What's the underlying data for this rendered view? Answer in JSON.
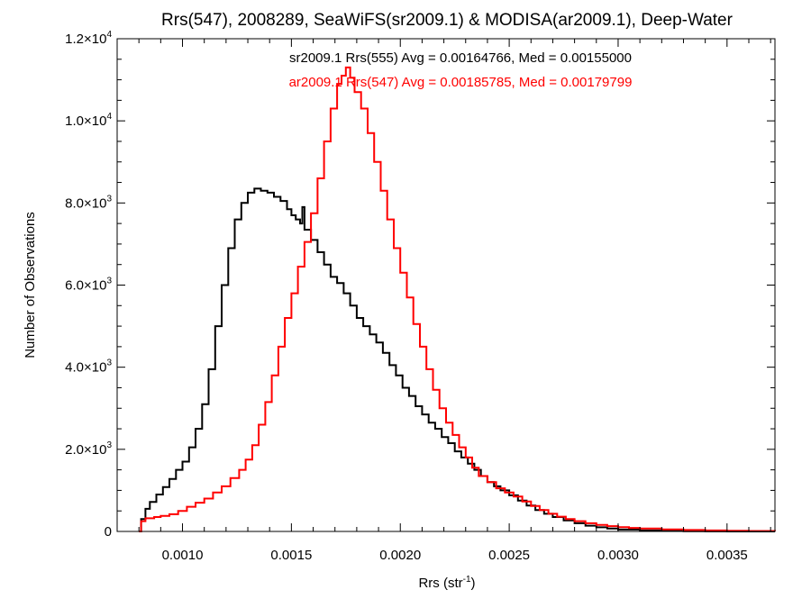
{
  "chart_data": {
    "type": "line",
    "style": "step histogram",
    "title": "Rrs(547), 2008289, SeaWiFS(sr2009.1) & MODISA(ar2009.1), Deep-Water",
    "xlabel": {
      "base": "Rrs (str",
      "sup": "-1",
      "tail": ")"
    },
    "ylabel": "Number of Observations",
    "xlim": [
      0.0007,
      0.00372
    ],
    "ylim": [
      0,
      12000
    ],
    "grid": false,
    "legend_position": "top-center",
    "x_ticks": [
      {
        "value": 0.001,
        "label": "0.0010"
      },
      {
        "value": 0.0015,
        "label": "0.0015"
      },
      {
        "value": 0.002,
        "label": "0.0020"
      },
      {
        "value": 0.0025,
        "label": "0.0025"
      },
      {
        "value": 0.003,
        "label": "0.0030"
      },
      {
        "value": 0.0035,
        "label": "0.0035"
      }
    ],
    "y_ticks": [
      {
        "value": 0,
        "mant": "0",
        "exp": ""
      },
      {
        "value": 2000,
        "mant": "2.0×10",
        "exp": "3"
      },
      {
        "value": 4000,
        "mant": "4.0×10",
        "exp": "3"
      },
      {
        "value": 6000,
        "mant": "6.0×10",
        "exp": "3"
      },
      {
        "value": 8000,
        "mant": "8.0×10",
        "exp": "3"
      },
      {
        "value": 10000,
        "mant": "1.0×10",
        "exp": "4"
      },
      {
        "value": 12000,
        "mant": "1.2×10",
        "exp": "4"
      }
    ],
    "series": [
      {
        "name": "sr2009.1 Rrs(555) Avg = 0.00164766, Med = 0.00155000",
        "color": "#000000",
        "points": [
          [
            0.0008,
            0
          ],
          [
            0.00081,
            300
          ],
          [
            0.00083,
            550
          ],
          [
            0.00085,
            720
          ],
          [
            0.00088,
            900
          ],
          [
            0.00091,
            1080
          ],
          [
            0.00094,
            1280
          ],
          [
            0.00097,
            1500
          ],
          [
            0.001,
            1700
          ],
          [
            0.00103,
            2050
          ],
          [
            0.00106,
            2500
          ],
          [
            0.00109,
            3100
          ],
          [
            0.00112,
            3950
          ],
          [
            0.00115,
            5000
          ],
          [
            0.00118,
            6000
          ],
          [
            0.00121,
            6900
          ],
          [
            0.00124,
            7600
          ],
          [
            0.00127,
            8000
          ],
          [
            0.0013,
            8250
          ],
          [
            0.00133,
            8350
          ],
          [
            0.00136,
            8300
          ],
          [
            0.00139,
            8250
          ],
          [
            0.00142,
            8150
          ],
          [
            0.00145,
            8050
          ],
          [
            0.00148,
            7850
          ],
          [
            0.0015,
            7700
          ],
          [
            0.00152,
            7600
          ],
          [
            0.00154,
            7500
          ],
          [
            0.00155,
            7900
          ],
          [
            0.00156,
            7350
          ],
          [
            0.00159,
            7100
          ],
          [
            0.00162,
            6800
          ],
          [
            0.00165,
            6500
          ],
          [
            0.00168,
            6200
          ],
          [
            0.00171,
            6050
          ],
          [
            0.00174,
            5800
          ],
          [
            0.00177,
            5500
          ],
          [
            0.0018,
            5200
          ],
          [
            0.00183,
            5000
          ],
          [
            0.00186,
            4800
          ],
          [
            0.00189,
            4600
          ],
          [
            0.00192,
            4350
          ],
          [
            0.00195,
            4050
          ],
          [
            0.00198,
            3800
          ],
          [
            0.00201,
            3500
          ],
          [
            0.00204,
            3300
          ],
          [
            0.00207,
            3050
          ],
          [
            0.0021,
            2850
          ],
          [
            0.00213,
            2650
          ],
          [
            0.00216,
            2500
          ],
          [
            0.00219,
            2300
          ],
          [
            0.00222,
            2150
          ],
          [
            0.00225,
            1950
          ],
          [
            0.00228,
            1800
          ],
          [
            0.00231,
            1650
          ],
          [
            0.00234,
            1500
          ],
          [
            0.00237,
            1350
          ],
          [
            0.0024,
            1200
          ],
          [
            0.00243,
            1100
          ],
          [
            0.00246,
            1000
          ],
          [
            0.0025,
            880
          ],
          [
            0.00254,
            750
          ],
          [
            0.00258,
            630
          ],
          [
            0.00262,
            520
          ],
          [
            0.00266,
            430
          ],
          [
            0.0027,
            350
          ],
          [
            0.00275,
            270
          ],
          [
            0.0028,
            200
          ],
          [
            0.00285,
            140
          ],
          [
            0.0029,
            100
          ],
          [
            0.00295,
            70
          ],
          [
            0.003,
            45
          ],
          [
            0.0031,
            25
          ],
          [
            0.0032,
            12
          ],
          [
            0.0033,
            6
          ],
          [
            0.0034,
            3
          ],
          [
            0.0035,
            1
          ],
          [
            0.0036,
            0
          ],
          [
            0.00372,
            0
          ]
        ]
      },
      {
        "name": "ar2009.1 Rrs(547) Avg = 0.00185785, Med = 0.00179799",
        "color": "#ff0000",
        "points": [
          [
            0.0008,
            0
          ],
          [
            0.00081,
            250
          ],
          [
            0.00083,
            320
          ],
          [
            0.00087,
            350
          ],
          [
            0.0009,
            380
          ],
          [
            0.00094,
            420
          ],
          [
            0.00098,
            500
          ],
          [
            0.00102,
            600
          ],
          [
            0.00106,
            700
          ],
          [
            0.0011,
            800
          ],
          [
            0.00114,
            950
          ],
          [
            0.00118,
            1100
          ],
          [
            0.00122,
            1300
          ],
          [
            0.00126,
            1500
          ],
          [
            0.00129,
            1750
          ],
          [
            0.00132,
            2100
          ],
          [
            0.00135,
            2600
          ],
          [
            0.00138,
            3150
          ],
          [
            0.00141,
            3800
          ],
          [
            0.00144,
            4500
          ],
          [
            0.00147,
            5200
          ],
          [
            0.0015,
            5800
          ],
          [
            0.00153,
            6450
          ],
          [
            0.00156,
            7050
          ],
          [
            0.00159,
            7750
          ],
          [
            0.00162,
            8600
          ],
          [
            0.00165,
            9500
          ],
          [
            0.00168,
            10300
          ],
          [
            0.00171,
            10900
          ],
          [
            0.00173,
            11100
          ],
          [
            0.00175,
            11300
          ],
          [
            0.00177,
            11050
          ],
          [
            0.00179,
            10700
          ],
          [
            0.00182,
            10300
          ],
          [
            0.00185,
            9700
          ],
          [
            0.00188,
            9000
          ],
          [
            0.00191,
            8300
          ],
          [
            0.00194,
            7600
          ],
          [
            0.00197,
            6900
          ],
          [
            0.002,
            6300
          ],
          [
            0.00203,
            5700
          ],
          [
            0.00206,
            5050
          ],
          [
            0.00209,
            4500
          ],
          [
            0.00212,
            3950
          ],
          [
            0.00215,
            3450
          ],
          [
            0.00218,
            3000
          ],
          [
            0.00221,
            2650
          ],
          [
            0.00224,
            2350
          ],
          [
            0.00227,
            2050
          ],
          [
            0.0023,
            1800
          ],
          [
            0.00233,
            1550
          ],
          [
            0.00236,
            1350
          ],
          [
            0.0024,
            1200
          ],
          [
            0.00244,
            1050
          ],
          [
            0.00248,
            950
          ],
          [
            0.00252,
            850
          ],
          [
            0.00256,
            730
          ],
          [
            0.0026,
            620
          ],
          [
            0.00264,
            520
          ],
          [
            0.00268,
            430
          ],
          [
            0.00272,
            360
          ],
          [
            0.00276,
            300
          ],
          [
            0.0028,
            250
          ],
          [
            0.00285,
            200
          ],
          [
            0.0029,
            160
          ],
          [
            0.00295,
            130
          ],
          [
            0.003,
            105
          ],
          [
            0.00305,
            85
          ],
          [
            0.0031,
            70
          ],
          [
            0.0032,
            50
          ],
          [
            0.0033,
            35
          ],
          [
            0.0034,
            25
          ],
          [
            0.0035,
            18
          ],
          [
            0.0036,
            12
          ],
          [
            0.00372,
            8
          ]
        ]
      }
    ]
  }
}
